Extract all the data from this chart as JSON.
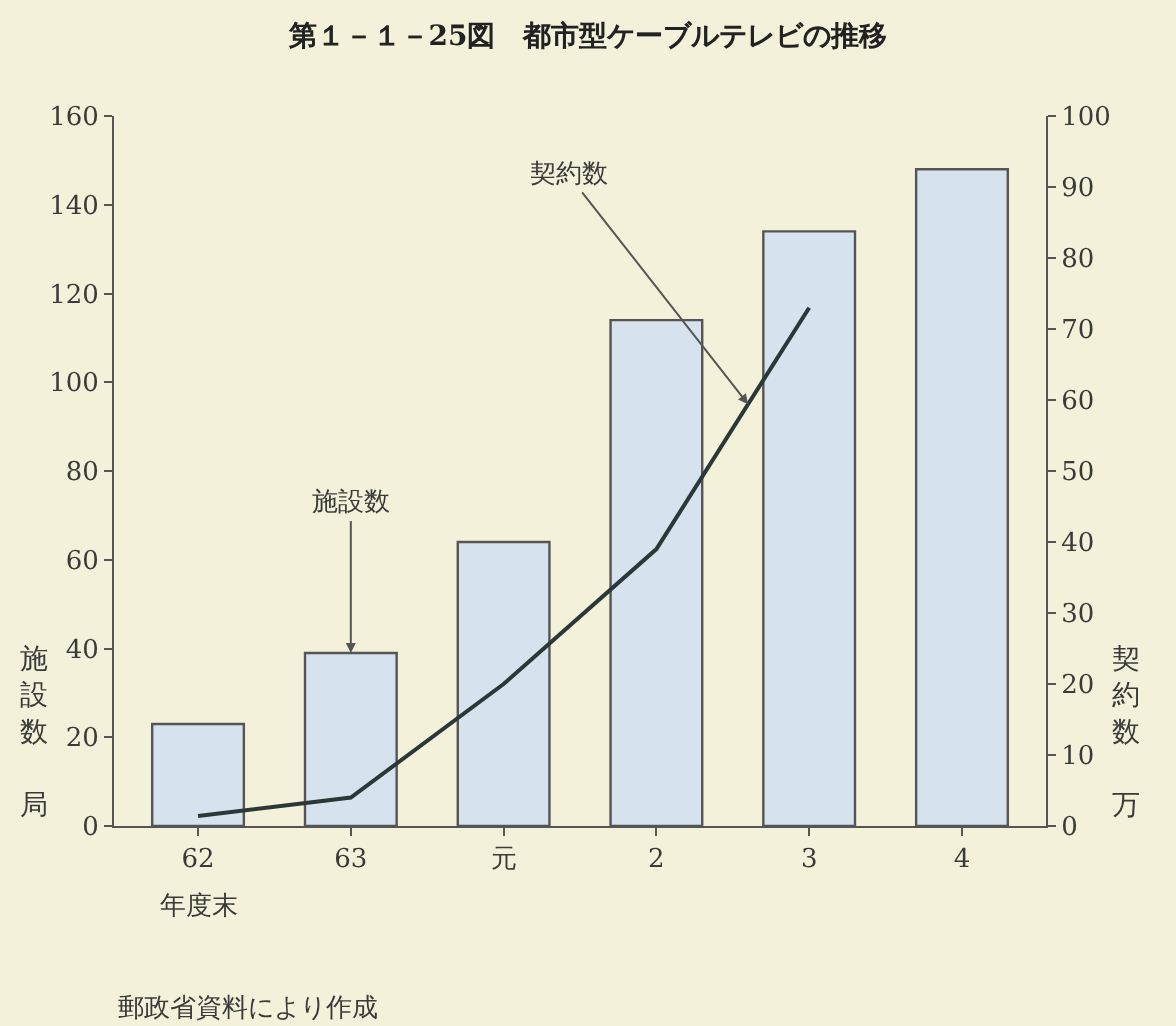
{
  "chart_data": {
    "type": "bar",
    "title": "第１－１－25図　都市型ケーブルテレビの推移",
    "categories": [
      "62",
      "63",
      "元",
      "2",
      "3",
      "4"
    ],
    "xlabel": "年度末",
    "ylabel": "施設数局",
    "y2label": "契約数万",
    "series": [
      {
        "name": "施設数",
        "color": "#d6e2ee",
        "values": [
          23,
          39,
          64,
          114,
          134,
          148
        ]
      },
      {
        "name": "契約数",
        "type": "line",
        "axis": "y2",
        "color": "#2b3838",
        "values": [
          1.4,
          4,
          20,
          39,
          73,
          null
        ]
      }
    ],
    "ylim": [
      0,
      160
    ],
    "yticks": [
      0,
      20,
      40,
      60,
      80,
      100,
      120,
      140,
      160
    ],
    "y2lim": [
      0,
      100
    ],
    "y2ticks": [
      0,
      10,
      20,
      30,
      40,
      50,
      60,
      70,
      80,
      90,
      100
    ],
    "grid": false,
    "legend": false,
    "marker": "none",
    "line_style": "solid",
    "annotations": [
      "郵政省資料により作成"
    ]
  }
}
